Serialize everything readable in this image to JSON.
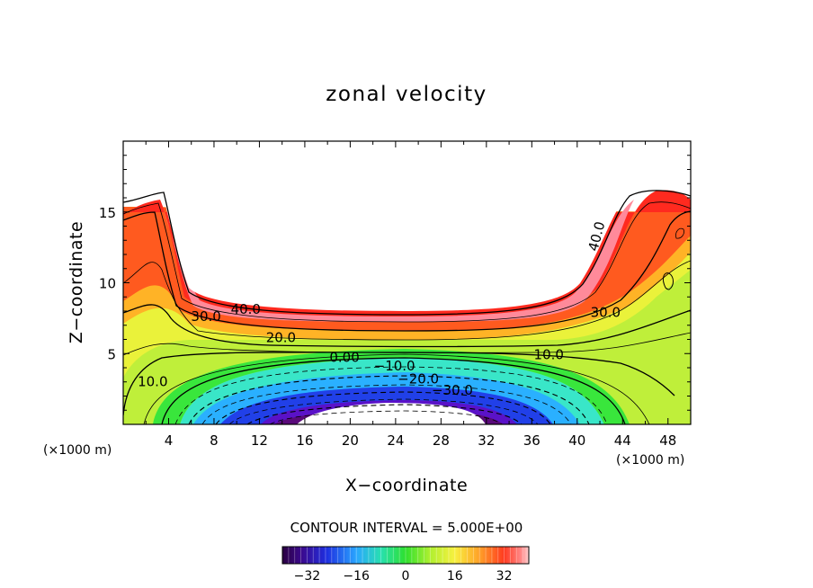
{
  "chart_data": {
    "type": "contour",
    "title": "zonal velocity",
    "xlabel": "X−coordinate",
    "ylabel": "Z−coordinate",
    "x_unit": "(×1000 m)",
    "y_unit": "(×1000 m)",
    "xlim": [
      0,
      50
    ],
    "ylim": [
      0,
      20
    ],
    "x_ticks": [
      4,
      8,
      12,
      16,
      20,
      24,
      28,
      32,
      36,
      40,
      44,
      48
    ],
    "x_tick_labels": [
      "4",
      "8",
      "12",
      "16",
      "20",
      "24",
      "28",
      "32",
      "36",
      "40",
      "44",
      "48"
    ],
    "y_ticks": [
      5,
      10,
      15
    ],
    "y_tick_labels": [
      "5",
      "10",
      "15"
    ],
    "contour_interval_text": "CONTOUR INTERVAL = 5.000E+00",
    "contour_interval": 5,
    "contour_labels": [
      {
        "text": "40.0",
        "x": 10.8,
        "z": 7.8
      },
      {
        "text": "30.0",
        "x": 7.3,
        "z": 7.3
      },
      {
        "text": "20.0",
        "x": 13.9,
        "z": 5.8
      },
      {
        "text": "10.0",
        "x": 2.6,
        "z": 2.7
      },
      {
        "text": "0.00",
        "x": 19.5,
        "z": 4.4
      },
      {
        "text": "−10.0",
        "x": 23.9,
        "z": 3.8
      },
      {
        "text": "−20.0",
        "x": 26.0,
        "z": 2.9
      },
      {
        "text": "−30.0",
        "x": 29.0,
        "z": 2.1
      },
      {
        "text": "10.0",
        "x": 37.5,
        "z": 4.6
      },
      {
        "text": "30.0",
        "x": 42.5,
        "z": 7.6
      },
      {
        "text": "40.0",
        "x": 42.1,
        "z": 13.2
      }
    ],
    "colorbar": {
      "range": [
        -40,
        40
      ],
      "ticks": [
        -32,
        -16,
        0,
        16,
        32
      ],
      "tick_labels": [
        "−32",
        "−16",
        "0",
        "16",
        "32"
      ]
    },
    "legend": "none",
    "grid": false
  }
}
